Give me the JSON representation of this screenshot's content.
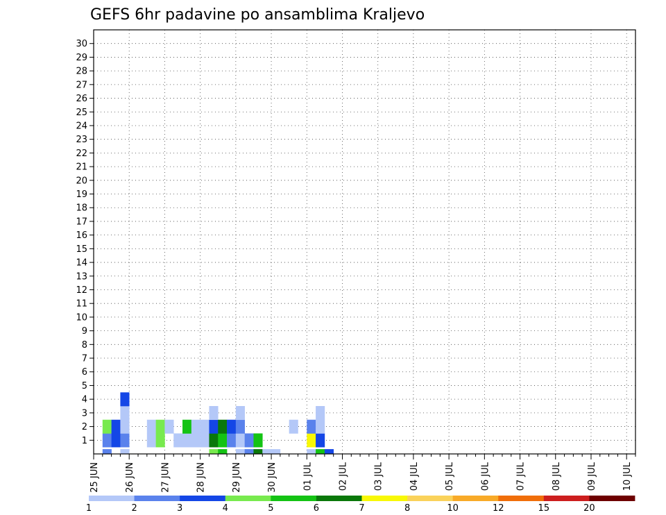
{
  "chart_data": {
    "type": "heatmap",
    "title": "GEFS 6hr padavine po ansamblima Kraljevo",
    "xlabel": "",
    "ylabel": "",
    "x_step": "6hr",
    "x_ticks": [
      "25 JUN",
      "26 JUN",
      "27 JUN",
      "28 JUN",
      "29 JUN",
      "30 JUN",
      "01 JUL",
      "02 JUL",
      "03 JUL",
      "04 JUL",
      "05 JUL",
      "06 JUL",
      "07 JUL",
      "08 JUL",
      "09 JUL",
      "10 JUL"
    ],
    "y_ticks": [
      "1",
      "2",
      "3",
      "4",
      "5",
      "6",
      "7",
      "8",
      "9",
      "10",
      "11",
      "12",
      "13",
      "14",
      "15",
      "16",
      "17",
      "18",
      "19",
      "20",
      "21",
      "22",
      "23",
      "24",
      "25",
      "26",
      "27",
      "28",
      "29",
      "30"
    ],
    "ylim": [
      0,
      30
    ],
    "legend": {
      "placement": "bottom",
      "levels": [
        "1",
        "2",
        "3",
        "4",
        "5",
        "6",
        "7",
        "8",
        "10",
        "12",
        "15",
        "20"
      ],
      "colors": [
        "#b4c8f8",
        "#5a82ec",
        "#1446e6",
        "#78ea4e",
        "#14c314",
        "#0a780a",
        "#f8f806",
        "#fad25a",
        "#f8aa28",
        "#f06e0a",
        "#cd1e1e",
        "#6e0000"
      ]
    },
    "cells": [
      [
        1,
        0,
        "#5a82ec"
      ],
      [
        1,
        1,
        "#5a82ec"
      ],
      [
        1,
        2,
        "#78ea4e"
      ],
      [
        2,
        1,
        "#1446e6"
      ],
      [
        2,
        2,
        "#1446e6"
      ],
      [
        3,
        0,
        "#b4c8f8"
      ],
      [
        3,
        1,
        "#5a82ec"
      ],
      [
        3,
        2,
        "#b4c8f8"
      ],
      [
        3,
        3,
        "#b4c8f8"
      ],
      [
        3,
        4,
        "#1446e6"
      ],
      [
        6,
        1,
        "#b4c8f8"
      ],
      [
        6,
        2,
        "#b4c8f8"
      ],
      [
        7,
        1,
        "#78ea4e"
      ],
      [
        7,
        2,
        "#78ea4e"
      ],
      [
        8,
        2,
        "#b4c8f8"
      ],
      [
        9,
        1,
        "#b4c8f8"
      ],
      [
        10,
        1,
        "#b4c8f8"
      ],
      [
        10,
        2,
        "#14c314"
      ],
      [
        11,
        1,
        "#b4c8f8"
      ],
      [
        11,
        2,
        "#b4c8f8"
      ],
      [
        12,
        1,
        "#b4c8f8"
      ],
      [
        12,
        2,
        "#b4c8f8"
      ],
      [
        13,
        0,
        "#78ea4e"
      ],
      [
        13,
        1,
        "#0a780a"
      ],
      [
        13,
        2,
        "#1446e6"
      ],
      [
        13,
        3,
        "#b4c8f8"
      ],
      [
        14,
        0,
        "#14c314"
      ],
      [
        14,
        1,
        "#14c314"
      ],
      [
        14,
        2,
        "#0a780a"
      ],
      [
        15,
        1,
        "#5a82ec"
      ],
      [
        15,
        2,
        "#1446e6"
      ],
      [
        16,
        0,
        "#b4c8f8"
      ],
      [
        16,
        1,
        "#b4c8f8"
      ],
      [
        16,
        2,
        "#5a82ec"
      ],
      [
        16,
        3,
        "#b4c8f8"
      ],
      [
        17,
        0,
        "#5a82ec"
      ],
      [
        17,
        1,
        "#5a82ec"
      ],
      [
        18,
        0,
        "#0a780a"
      ],
      [
        18,
        1,
        "#14c314"
      ],
      [
        19,
        0,
        "#b4c8f8"
      ],
      [
        20,
        0,
        "#b4c8f8"
      ],
      [
        22,
        2,
        "#b4c8f8"
      ],
      [
        24,
        0,
        "#b4c8f8"
      ],
      [
        24,
        1,
        "#f8f806"
      ],
      [
        24,
        2,
        "#5a82ec"
      ],
      [
        25,
        0,
        "#14c314"
      ],
      [
        25,
        1,
        "#1446e6"
      ],
      [
        25,
        2,
        "#b4c8f8"
      ],
      [
        25,
        3,
        "#b4c8f8"
      ],
      [
        26,
        0,
        "#1446e6"
      ]
    ]
  }
}
